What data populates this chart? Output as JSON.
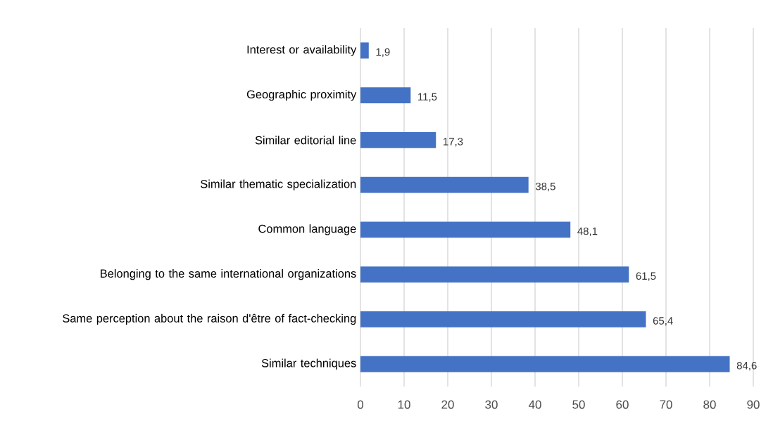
{
  "chart_data": {
    "type": "bar",
    "orientation": "horizontal",
    "categories": [
      "Interest or availability",
      "Geographic proximity",
      "Similar editorial line",
      "Similar thematic specialization",
      "Common language",
      "Belonging to the same international organizations",
      "Same perception about the raison d'être of fact-checking",
      "Similar techniques"
    ],
    "values": [
      1.9,
      11.5,
      17.3,
      38.5,
      48.1,
      61.5,
      65.4,
      84.6
    ],
    "value_labels": [
      "1,9",
      "11,5",
      "17,3",
      "38,5",
      "48,1",
      "61,5",
      "65,4",
      "84,6"
    ],
    "color": "#4472c4",
    "xlim": [
      0,
      90
    ],
    "xticks": [
      0,
      10,
      20,
      30,
      40,
      50,
      60,
      70,
      80,
      90
    ],
    "grid": "x"
  }
}
